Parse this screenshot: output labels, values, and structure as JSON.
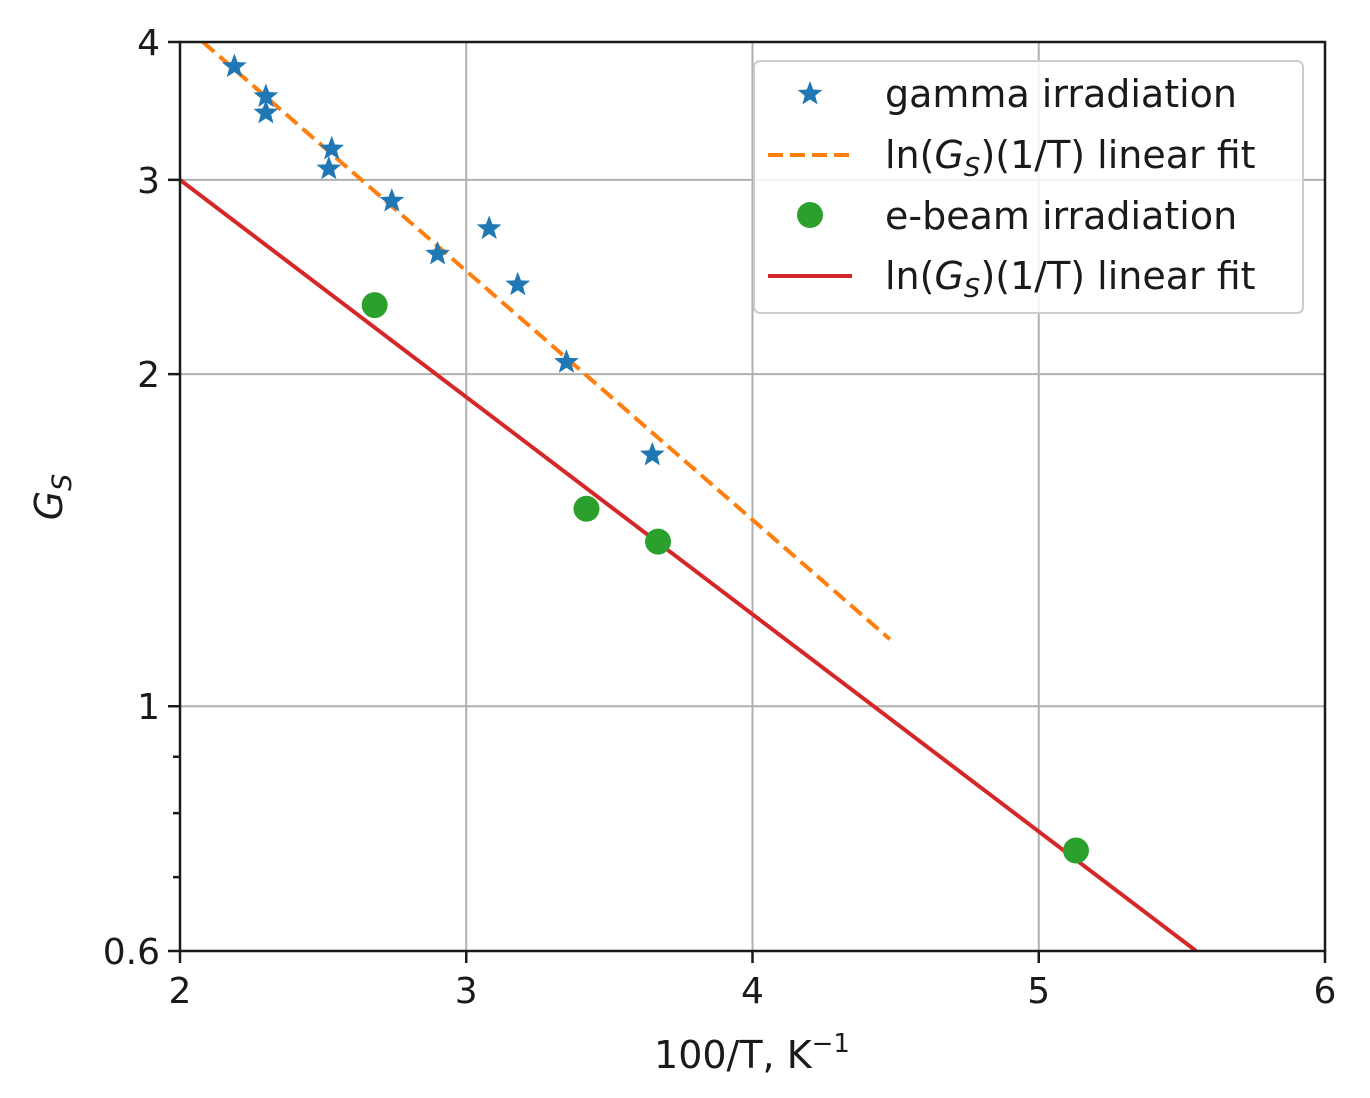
{
  "chart_data": {
    "type": "scatter",
    "xlabel": "100/T, K",
    "xlabel_sup": "−1",
    "ylabel": "G",
    "ylabel_sub": "S",
    "xlim": [
      2,
      6
    ],
    "ylim": [
      0.6,
      4
    ],
    "yscale": "log",
    "grid": true,
    "legend_position": "top-right",
    "x_ticks": [
      2,
      3,
      4,
      5,
      6
    ],
    "x_tick_labels": [
      "2",
      "3",
      "4",
      "5",
      "6"
    ],
    "y_ticks": [
      0.6,
      1,
      2,
      3,
      4
    ],
    "y_tick_labels": [
      "0.6",
      "1",
      "2",
      "3",
      "4"
    ],
    "y_minor_ticks": [
      0.7,
      0.8,
      0.9
    ],
    "series": [
      {
        "name": "gamma irradiation",
        "kind": "scatter",
        "marker": "star",
        "color": "#1f77b4",
        "points": [
          {
            "x": 2.19,
            "y": 3.8
          },
          {
            "x": 2.3,
            "y": 3.57
          },
          {
            "x": 2.3,
            "y": 3.45
          },
          {
            "x": 2.53,
            "y": 3.2
          },
          {
            "x": 2.52,
            "y": 3.07
          },
          {
            "x": 2.74,
            "y": 2.87
          },
          {
            "x": 2.9,
            "y": 2.57
          },
          {
            "x": 3.08,
            "y": 2.71
          },
          {
            "x": 3.18,
            "y": 2.41
          },
          {
            "x": 3.35,
            "y": 2.05
          },
          {
            "x": 3.65,
            "y": 1.69
          }
        ]
      },
      {
        "name_prefix": "ln(",
        "name_var": "G",
        "name_sub": "S",
        "name_suffix": ")(1/T) linear fit",
        "kind": "line",
        "style": "dashed",
        "color": "#ff7f0e",
        "points": [
          {
            "x": 2.08,
            "y": 4.0
          },
          {
            "x": 4.48,
            "y": 1.15
          }
        ]
      },
      {
        "name": "e-beam irradiation",
        "kind": "scatter",
        "marker": "circle",
        "color": "#2ca02c",
        "points": [
          {
            "x": 2.68,
            "y": 2.31
          },
          {
            "x": 3.42,
            "y": 1.51
          },
          {
            "x": 3.67,
            "y": 1.41
          },
          {
            "x": 5.13,
            "y": 0.74
          }
        ]
      },
      {
        "name_prefix": "ln(",
        "name_var": "G",
        "name_sub": "S",
        "name_suffix": ")(1/T) linear fit",
        "kind": "line",
        "style": "solid",
        "color": "#d62728",
        "points": [
          {
            "x": 2.0,
            "y": 3.0
          },
          {
            "x": 5.55,
            "y": 0.6
          }
        ]
      }
    ]
  }
}
